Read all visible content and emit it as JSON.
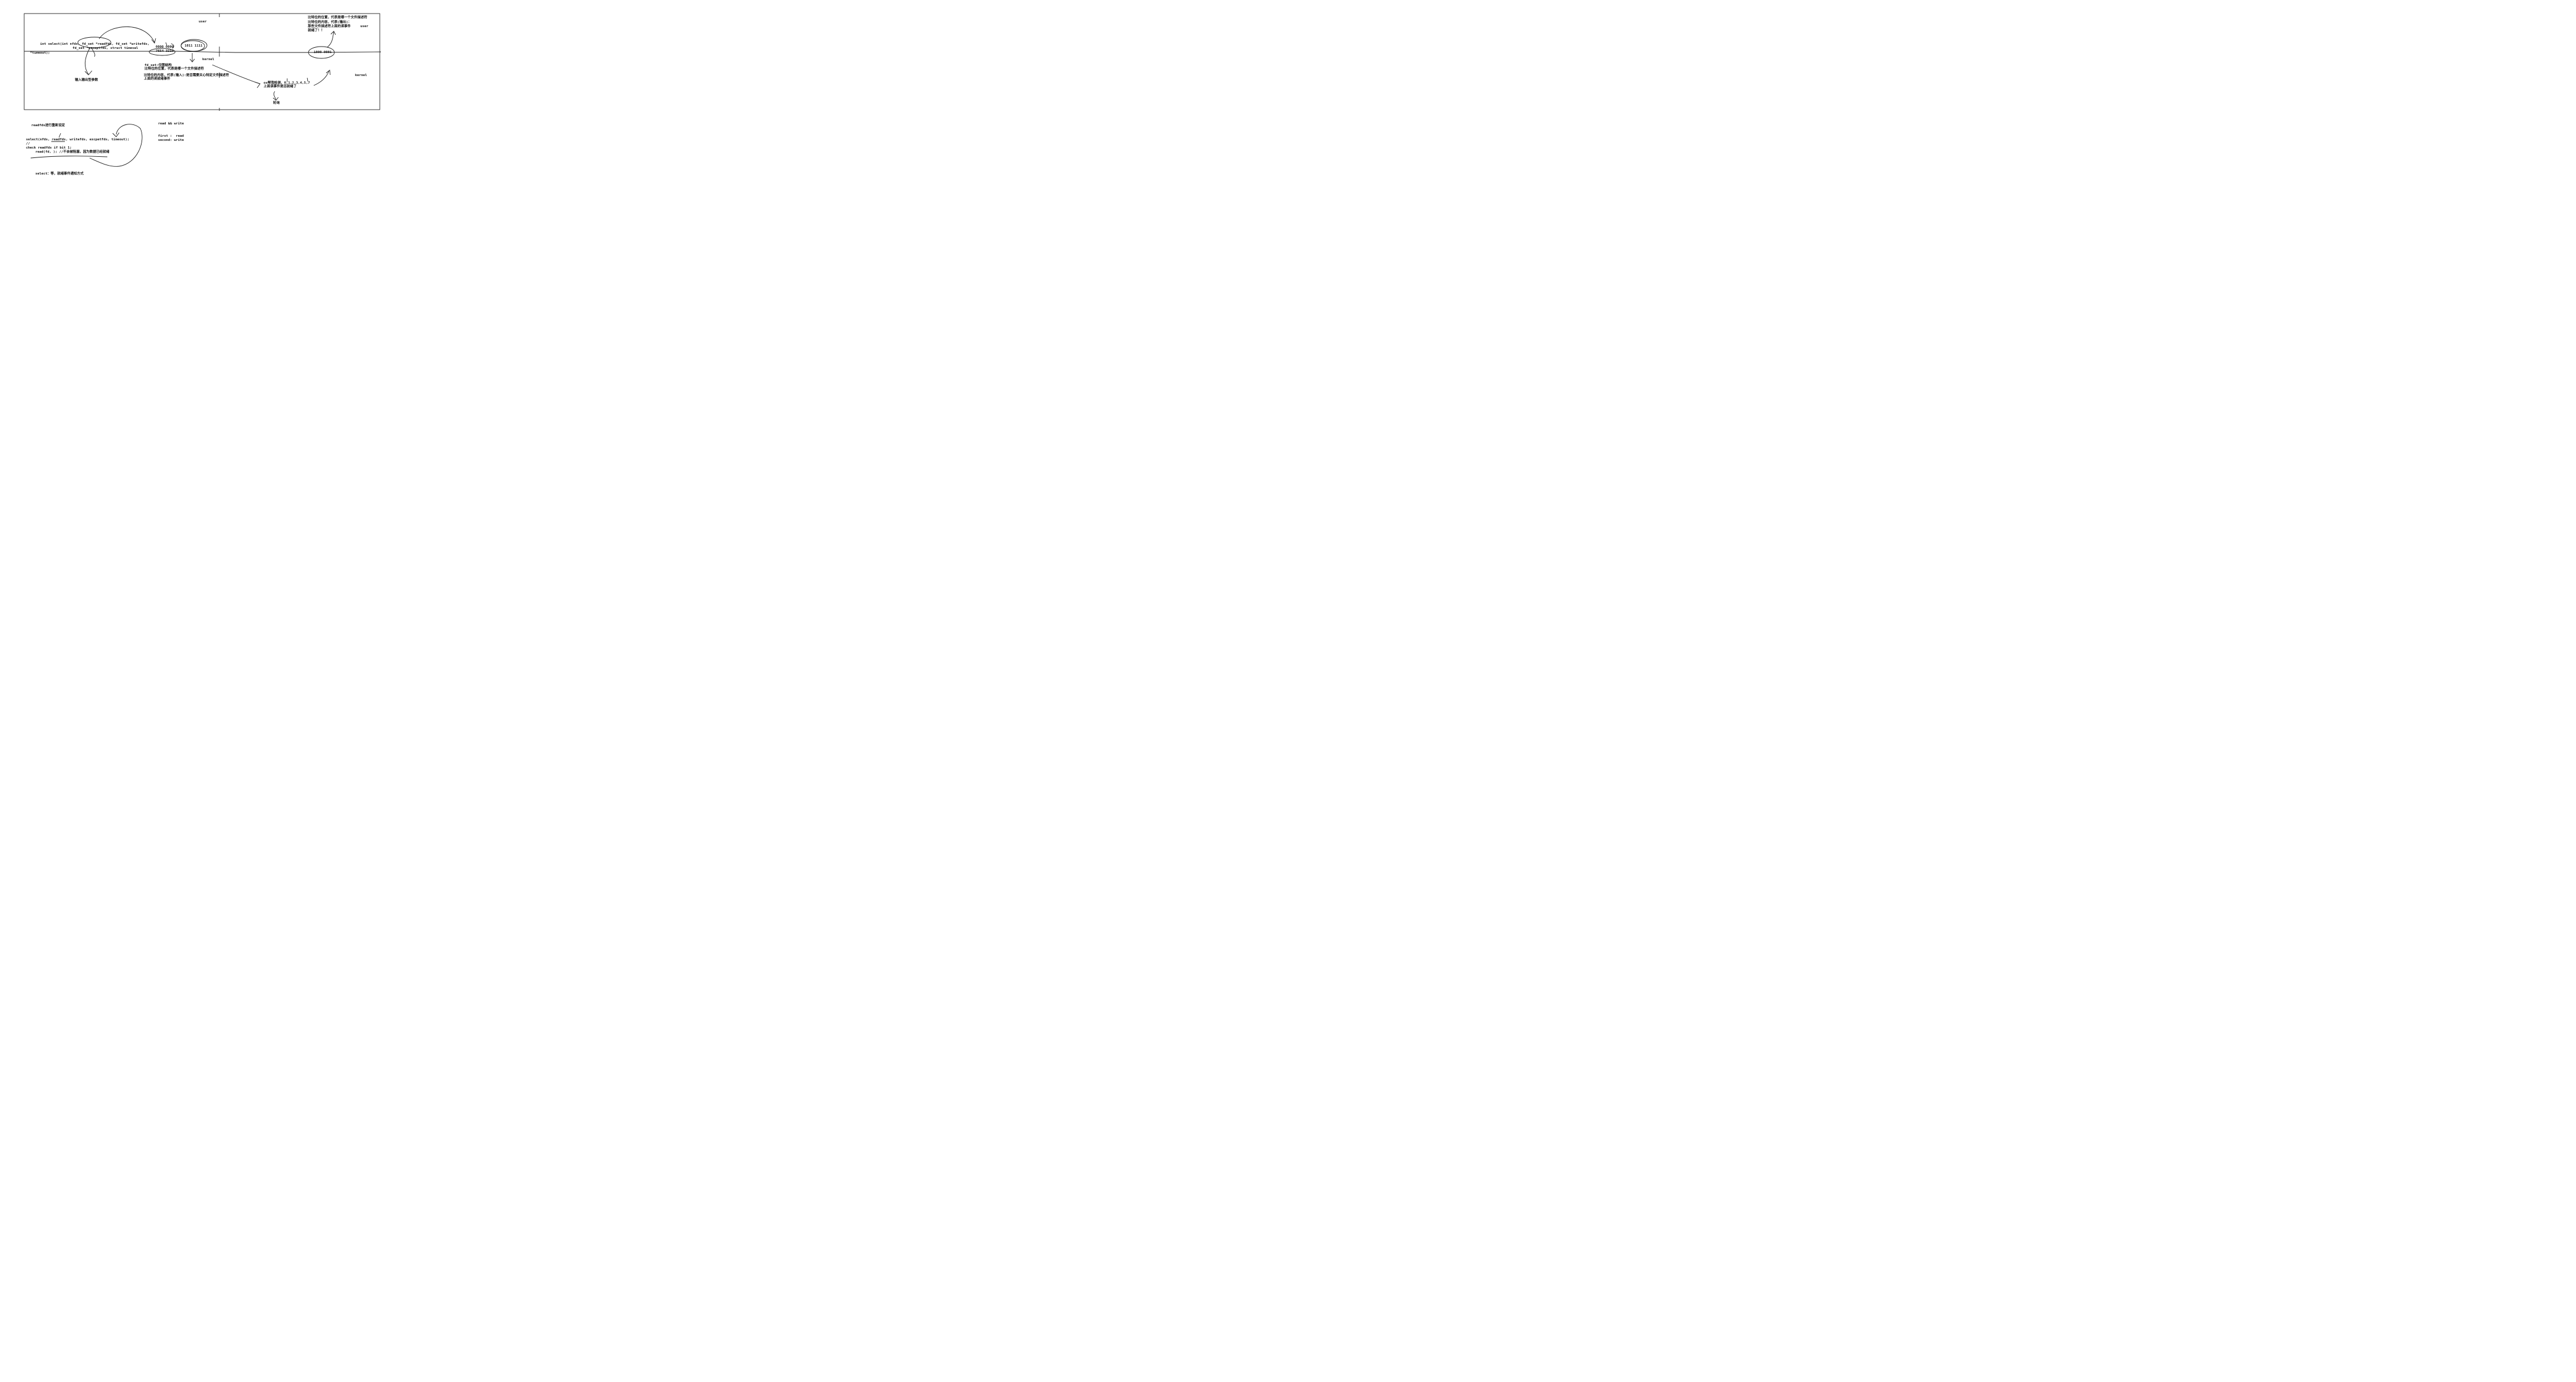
{
  "whiteboard": {
    "user_label_1": "user",
    "user_label_2": "user",
    "kernel_label_1": "kernel",
    "kernel_label_2": "kernel",
    "select_sig_1": "int select(int nfds, fd_set *readfds, fd_set *writefds,",
    "select_sig_2": "fd_set *exceptfds, struct timeval",
    "select_sig_3": "*timeout);",
    "inout_params": "输入输出型参数",
    "bits_top": "0000 0000",
    "bits_index": "7654 3210",
    "bits_set": "1011 1111",
    "fdset_title": "fd_set:位图结构",
    "fdset_pos": "比特位的位置，代表是哪一个文件描述符",
    "fdset_content_1": "比特位的内容，代表(输入):是否需要关心特定文件描述符",
    "fdset_content_2": "上面的读就绪事件",
    "os_check_1": "os帮我检测，0,1,2,3,4,5,7",
    "os_check_2": "上面读事件是否就绪了",
    "polling": "轮询",
    "out_pos": "比特位的位置，代表是哪一个文件描述符",
    "out_content_1": "比特位的内容，代表(输出)：",
    "out_content_2": "那些文件描述符上面的读事件",
    "out_content_3": "就绪了！！",
    "bits_out": "1000 0001",
    "readfds_reset": "readfds进行重新设定",
    "code_1": "select(nfds, readfds, writefds, excpetfds, timeout);",
    "code_2": "//",
    "code_3": "check readfds if bit 1;",
    "code_4": "read(fd, ); //不会被阻塞，因为数据已经就绪",
    "summary": "select：等，就绪事件通知方式",
    "rw_title": "read && write",
    "rw_first": "first :  read",
    "rw_second": "second: write"
  }
}
